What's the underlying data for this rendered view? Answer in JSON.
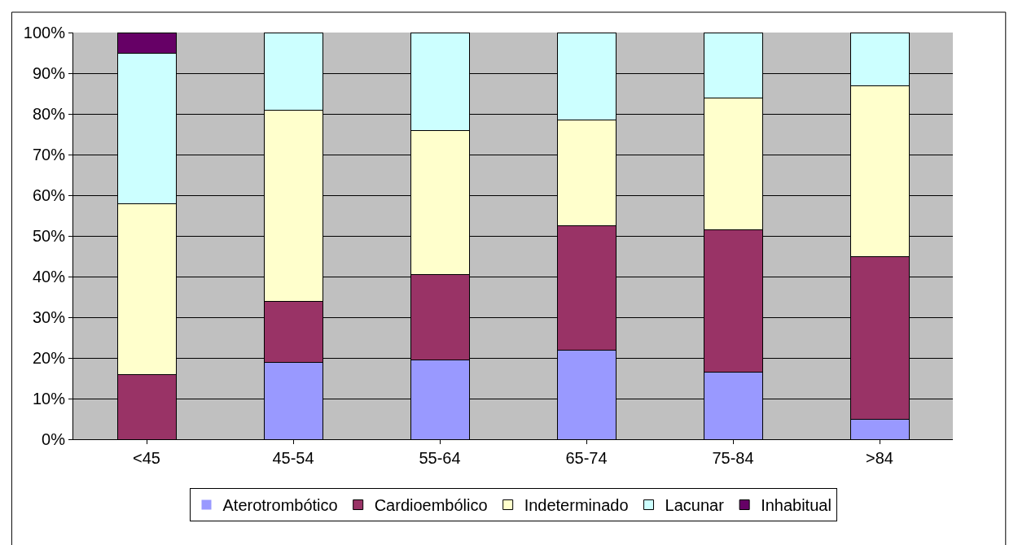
{
  "chart_data": {
    "type": "bar",
    "stacked": true,
    "categories": [
      "<45",
      "45-54",
      "55-64",
      "65-74",
      "75-84",
      ">84"
    ],
    "series": [
      {
        "name": "Aterotrombótico",
        "color": "#9999ff",
        "values": [
          0,
          19,
          19.5,
          22,
          16.5,
          5
        ]
      },
      {
        "name": "Cardioembólico",
        "color": "#993366",
        "values": [
          16,
          15,
          21,
          30.5,
          35,
          40
        ]
      },
      {
        "name": "Indeterminado",
        "color": "#ffffcc",
        "values": [
          42,
          47,
          35.5,
          26,
          32.5,
          42
        ]
      },
      {
        "name": "Lacunar",
        "color": "#ccffff",
        "values": [
          37,
          19,
          24,
          21.5,
          16,
          13
        ]
      },
      {
        "name": "Inhabitual",
        "color": "#660066",
        "values": [
          5,
          0,
          0,
          0,
          0,
          0
        ]
      }
    ],
    "ylim": [
      0,
      100
    ],
    "yticks": [
      {
        "value": 0,
        "label": "0%"
      },
      {
        "value": 10,
        "label": "10%"
      },
      {
        "value": 20,
        "label": "20%"
      },
      {
        "value": 30,
        "label": "30%"
      },
      {
        "value": 40,
        "label": "40%"
      },
      {
        "value": 50,
        "label": "50%"
      },
      {
        "value": 60,
        "label": "60%"
      },
      {
        "value": 70,
        "label": "70%"
      },
      {
        "value": 80,
        "label": "80%"
      },
      {
        "value": 90,
        "label": "90%"
      },
      {
        "value": 100,
        "label": "100%"
      }
    ],
    "grid": "y",
    "legend": "bottom"
  }
}
